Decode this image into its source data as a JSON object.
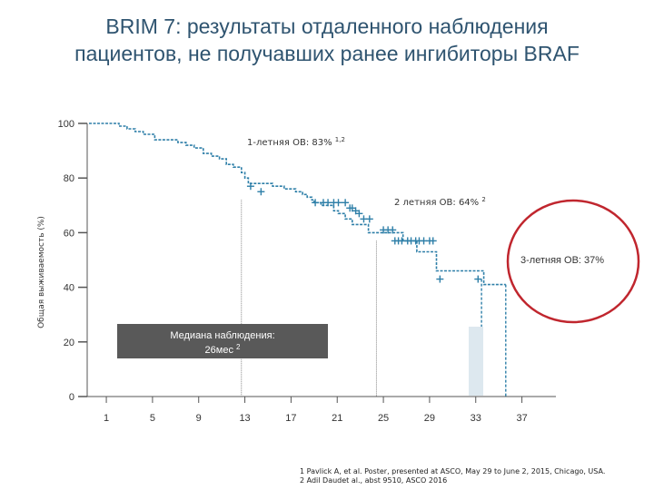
{
  "title_line1": "BRIM 7: результаты отдаленного наблюдения",
  "title_line2": "пациентов, не получавших  ранее  ингибиторы BRAF",
  "footnotes": [
    "1 Pavlick A, et al. Poster, presented at ASCO, May 29 to June 2, 2015, Chicago, USA.",
    "2 Adil Daudet al., abst 9510, ASCO 2016"
  ],
  "colors": {
    "curve": "#2e7fa8",
    "title": "#2f5470",
    "circle": "#c0262e",
    "box": "#595959"
  },
  "chart_data": {
    "type": "line",
    "ylabel": "Общая выживаемость (%)",
    "xlabel": "",
    "yticks": [
      100,
      80,
      60,
      40,
      20,
      0
    ],
    "ylim": [
      0,
      100
    ],
    "xticks": [
      1,
      5,
      9,
      13,
      17,
      21,
      25,
      29,
      33,
      37
    ],
    "xlim": [
      -0.5,
      39
    ],
    "series": [
      {
        "name": "",
        "points": [
          [
            -0.5,
            100
          ],
          [
            2.1,
            100
          ],
          [
            2.1,
            99
          ],
          [
            2.8,
            99
          ],
          [
            2.8,
            98
          ],
          [
            3.5,
            98
          ],
          [
            3.5,
            97
          ],
          [
            4.2,
            97
          ],
          [
            4.2,
            96
          ],
          [
            5.2,
            96
          ],
          [
            5.2,
            94
          ],
          [
            7.2,
            94
          ],
          [
            7.2,
            93
          ],
          [
            7.9,
            93
          ],
          [
            7.9,
            92
          ],
          [
            8.6,
            92
          ],
          [
            8.6,
            91
          ],
          [
            9.4,
            91
          ],
          [
            9.4,
            89
          ],
          [
            10.1,
            89
          ],
          [
            10.1,
            88
          ],
          [
            10.8,
            88
          ],
          [
            10.8,
            87
          ],
          [
            11.4,
            87
          ],
          [
            11.4,
            85
          ],
          [
            12.0,
            85
          ],
          [
            12.0,
            84
          ],
          [
            12.7,
            84
          ],
          [
            12.7,
            82
          ],
          [
            13.0,
            82
          ],
          [
            13.0,
            80
          ],
          [
            13.3,
            80
          ],
          [
            13.3,
            78
          ],
          [
            15.4,
            78
          ],
          [
            15.4,
            77
          ],
          [
            16.4,
            77
          ],
          [
            16.4,
            76
          ],
          [
            17.4,
            76
          ],
          [
            17.4,
            75
          ],
          [
            18.0,
            75
          ],
          [
            18.0,
            74
          ],
          [
            18.4,
            74
          ],
          [
            18.4,
            73
          ],
          [
            18.8,
            73
          ],
          [
            18.8,
            72
          ],
          [
            19.0,
            72
          ],
          [
            19.0,
            71
          ],
          [
            19.6,
            71
          ],
          [
            19.6,
            70
          ],
          [
            20.7,
            70
          ],
          [
            20.7,
            68
          ],
          [
            21.1,
            68
          ],
          [
            21.1,
            67
          ],
          [
            21.7,
            67
          ],
          [
            21.7,
            65
          ],
          [
            22.3,
            65
          ],
          [
            22.3,
            63
          ],
          [
            23.7,
            63
          ],
          [
            23.7,
            60
          ],
          [
            26.7,
            60
          ],
          [
            26.7,
            57
          ],
          [
            27.9,
            57
          ],
          [
            27.9,
            53
          ],
          [
            29.6,
            53
          ],
          [
            29.6,
            46
          ],
          [
            33.7,
            46
          ],
          [
            33.7,
            41
          ],
          [
            35.6,
            41
          ]
        ]
      }
    ],
    "censor_marks": [
      [
        13.5,
        77
      ],
      [
        14.4,
        75
      ],
      [
        19.1,
        71
      ],
      [
        19.8,
        71
      ],
      [
        20.2,
        71
      ],
      [
        20.7,
        71
      ],
      [
        21.1,
        71
      ],
      [
        21.7,
        71
      ],
      [
        22.1,
        69
      ],
      [
        22.3,
        69
      ],
      [
        22.6,
        68
      ],
      [
        22.9,
        67
      ],
      [
        23.3,
        65
      ],
      [
        23.8,
        65
      ],
      [
        25.0,
        61
      ],
      [
        25.4,
        61
      ],
      [
        25.8,
        61
      ],
      [
        26.0,
        57
      ],
      [
        26.3,
        57
      ],
      [
        26.6,
        57
      ],
      [
        27.1,
        57
      ],
      [
        27.4,
        57
      ],
      [
        27.8,
        57
      ],
      [
        28.1,
        57
      ],
      [
        28.5,
        57
      ],
      [
        29.0,
        57
      ],
      [
        29.3,
        57
      ],
      [
        29.9,
        43
      ],
      [
        33.2,
        43
      ]
    ],
    "dashed_lines": [
      {
        "x": 33.5,
        "y": 43
      },
      {
        "x": 35.6,
        "y": 41
      }
    ],
    "gray_lines": [
      {
        "x": 12.7,
        "y": 72
      },
      {
        "x": 24.4,
        "y": 57
      }
    ],
    "annotations": [
      {
        "text": "1-летняя ОВ: 83% ",
        "sup": "1,2"
      },
      {
        "text": "2 летняя ОВ: 64% ",
        "sup": "2"
      },
      {
        "text": "3-летняя ОВ: 37%"
      },
      {
        "line1": "Медиана наблюдения:",
        "line2": "26мес ",
        "sup": "2"
      }
    ]
  }
}
